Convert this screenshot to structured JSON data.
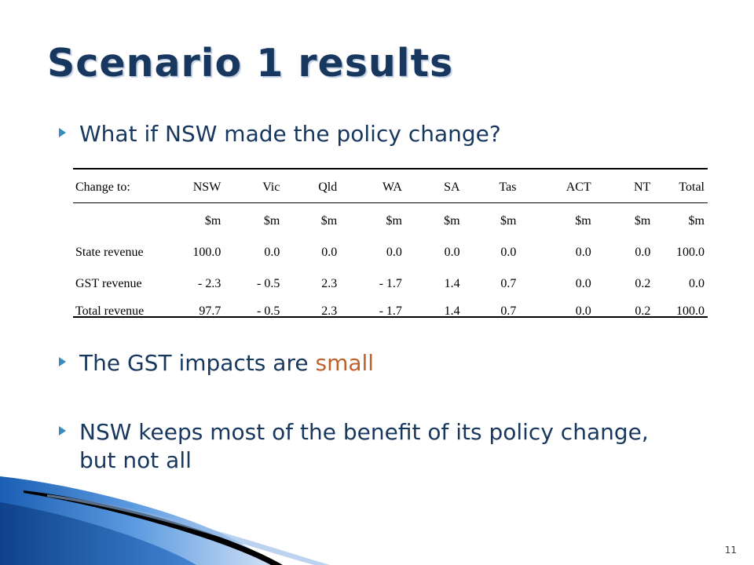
{
  "slide": {
    "title": "Scenario 1 results",
    "bullets": [
      {
        "text": "What if NSW made the policy change?"
      },
      {
        "text_before": "The GST impacts are ",
        "highlight": "small",
        "highlight_color": "#c0602a"
      },
      {
        "text": "NSW keeps most of the benefit of its policy change, but not all"
      }
    ],
    "slide_number": "11"
  },
  "table": {
    "headers": [
      "Change to:",
      "NSW",
      "Vic",
      "Qld",
      "WA",
      "SA",
      "Tas",
      "ACT",
      "NT",
      "Total"
    ],
    "units": [
      "",
      "$m",
      "$m",
      "$m",
      "$m",
      "$m",
      "$m",
      "$m",
      "$m",
      "$m"
    ],
    "rows": [
      [
        "State revenue",
        "100.0",
        "0.0",
        "0.0",
        "0.0",
        "0.0",
        "0.0",
        "0.0",
        "0.0",
        "100.0"
      ],
      [
        "GST revenue",
        "- 2.3",
        "- 0.5",
        "2.3",
        "- 1.7",
        "1.4",
        "0.7",
        "0.0",
        "0.2",
        "0.0"
      ],
      [
        "Total revenue",
        "97.7",
        "- 0.5",
        "2.3",
        "- 1.7",
        "1.4",
        "0.7",
        "0.0",
        "0.2",
        "100.0"
      ]
    ]
  },
  "colors": {
    "title": "#17375e",
    "body_text": "#17375e",
    "accent": "#c0602a",
    "decoration_blue": "#1f6fc0"
  }
}
